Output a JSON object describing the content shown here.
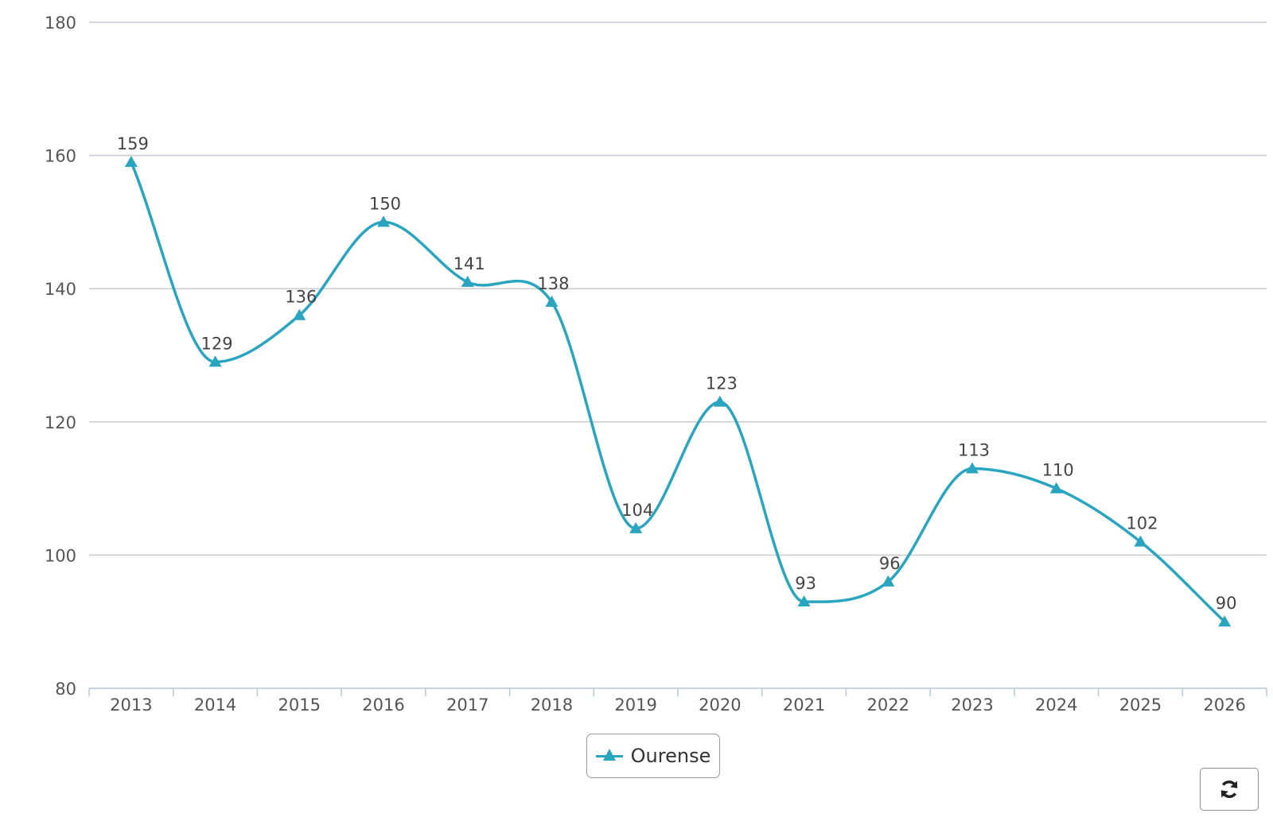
{
  "chart_data": {
    "type": "line",
    "title": "",
    "xlabel": "",
    "ylabel": "",
    "categories": [
      "2013",
      "2014",
      "2015",
      "2016",
      "2017",
      "2018",
      "2019",
      "2020",
      "2021",
      "2022",
      "2023",
      "2024",
      "2025",
      "2026"
    ],
    "series": [
      {
        "name": "Ourense",
        "values": [
          159,
          129,
          136,
          150,
          141,
          138,
          104,
          123,
          93,
          96,
          113,
          110,
          102,
          90
        ],
        "color": "#2aa5c0",
        "marker": "triangle",
        "smooth": true,
        "data_labels": true
      }
    ],
    "ylim": [
      80,
      180
    ],
    "yticks": [
      80,
      100,
      120,
      140,
      160,
      180
    ],
    "grid": true,
    "legend": "bottom-center"
  },
  "legend": {
    "items": [
      {
        "label": "Ourense",
        "icon": "triangle-line-icon",
        "color": "#2aa5c0"
      }
    ]
  },
  "controls": {
    "refresh_icon": "refresh-icon"
  },
  "colors": {
    "series": "#2aa5c0",
    "grid": "#c8ccd0",
    "axis_text": "#555555",
    "label_text": "#444444"
  }
}
